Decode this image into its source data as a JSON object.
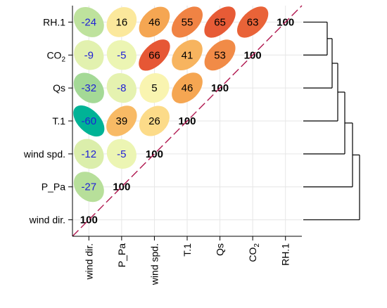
{
  "chart_data": {
    "type": "heatmap",
    "subtype": "correlation-ellipse-upper-triangle-with-dendrogram",
    "variables": [
      "wind dir.",
      "P_Pa",
      "wind spd.",
      "T.1",
      "Qs",
      "CO₂",
      "RH.1"
    ],
    "x_tick_labels": [
      "wind dir.",
      "P_Pa",
      "wind spd.",
      "T.1",
      "Qs",
      "CO₂",
      "RH.1"
    ],
    "y_tick_labels_bottom_to_top": [
      "wind dir.",
      "P_Pa",
      "wind spd.",
      "T.1",
      "Qs",
      "CO₂",
      "RH.1"
    ],
    "value_unit": "correlation x 100",
    "diagonal_value": 100,
    "cells": [
      {
        "row": "P_Pa",
        "col": "wind dir.",
        "value": -27
      },
      {
        "row": "wind spd.",
        "col": "wind dir.",
        "value": -12
      },
      {
        "row": "wind spd.",
        "col": "P_Pa",
        "value": -5
      },
      {
        "row": "T.1",
        "col": "wind dir.",
        "value": -60
      },
      {
        "row": "T.1",
        "col": "P_Pa",
        "value": 39
      },
      {
        "row": "T.1",
        "col": "wind spd.",
        "value": 26
      },
      {
        "row": "Qs",
        "col": "wind dir.",
        "value": -32
      },
      {
        "row": "Qs",
        "col": "P_Pa",
        "value": -8
      },
      {
        "row": "Qs",
        "col": "wind spd.",
        "value": 5
      },
      {
        "row": "Qs",
        "col": "T.1",
        "value": 46
      },
      {
        "row": "CO₂",
        "col": "wind dir.",
        "value": -9
      },
      {
        "row": "CO₂",
        "col": "P_Pa",
        "value": -5
      },
      {
        "row": "CO₂",
        "col": "wind spd.",
        "value": 66
      },
      {
        "row": "CO₂",
        "col": "T.1",
        "value": 41
      },
      {
        "row": "CO₂",
        "col": "Qs",
        "value": 53
      },
      {
        "row": "RH.1",
        "col": "wind dir.",
        "value": -24
      },
      {
        "row": "RH.1",
        "col": "P_Pa",
        "value": 16
      },
      {
        "row": "RH.1",
        "col": "wind spd.",
        "value": 46
      },
      {
        "row": "RH.1",
        "col": "T.1",
        "value": 55
      },
      {
        "row": "RH.1",
        "col": "Qs",
        "value": 65
      },
      {
        "row": "RH.1",
        "col": "CO₂",
        "value": 63
      }
    ],
    "dendrogram_leaf_order_top_to_bottom": [
      "RH.1",
      "CO₂",
      "Qs",
      "T.1",
      "wind spd.",
      "P_Pa",
      "wind dir."
    ],
    "dendrogram_merges": [
      [
        "RH.1",
        "CO₂"
      ],
      [
        "RH.1+CO₂",
        "Qs"
      ],
      [
        "RH.1+CO₂+Qs",
        "T.1"
      ],
      [
        "RH.1+CO₂+Qs+T.1",
        "wind spd."
      ],
      [
        "RH.1+CO₂+Qs+T.1+wind spd.",
        "P_Pa"
      ],
      [
        "all_others",
        "wind dir."
      ]
    ],
    "grid": true,
    "diagonal_line": "dashed",
    "colors": {
      "diagonal_line": "#b0174f",
      "negative_text": "#1f1fd6",
      "positive_text": "#000000",
      "diagonal_text": "#000000",
      "grid": "#e6e6e6"
    }
  }
}
